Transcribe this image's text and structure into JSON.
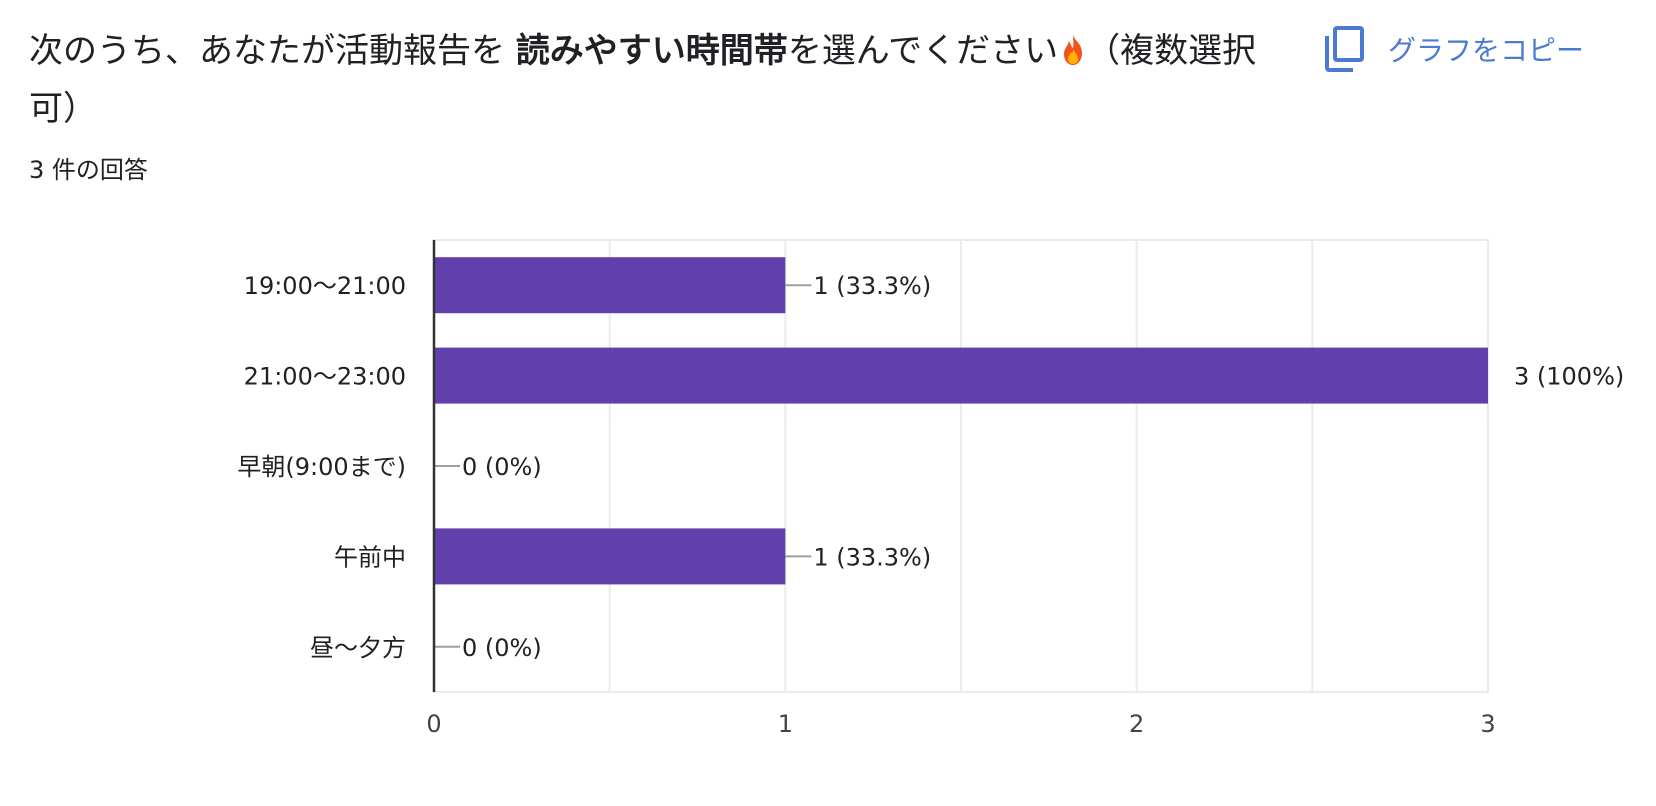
{
  "question": {
    "title_prefix": "次のうち、あなたが活動報告を ",
    "title_bold": "読みやすい時間帯",
    "title_suffix": "を選んでください",
    "title_note": "（複数選択可）",
    "emoji_icon": "fire-icon"
  },
  "responses_label": "3 件の回答",
  "copy_button": {
    "label": "グラフをコピー",
    "icon": "copy-icon",
    "color": "#4a7bd0"
  },
  "colors": {
    "bar": "#6240ab",
    "axis": "#333333",
    "grid": "#ebebeb",
    "leader": "#9e9e9e"
  },
  "chart_data": {
    "type": "bar",
    "orientation": "horizontal",
    "categories": [
      "19:00〜21:00",
      "21:00〜23:00",
      "早朝(9:00まで)",
      "午前中",
      "昼〜夕方"
    ],
    "values": [
      1,
      3,
      0,
      1,
      0
    ],
    "data_labels": [
      "1 (33.3%)",
      "3 (100%)",
      "0 (0%)",
      "1 (33.3%)",
      "0 (0%)"
    ],
    "xlim": [
      0,
      3
    ],
    "xticks": [
      "0",
      "1",
      "2",
      "3"
    ],
    "grid": true,
    "legend": "none"
  }
}
